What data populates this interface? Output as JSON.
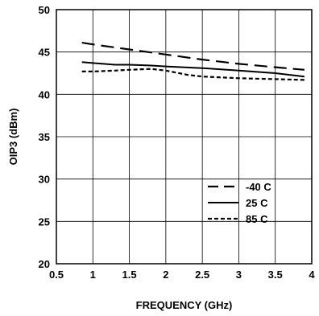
{
  "chart_data": {
    "type": "line",
    "title": "",
    "xlabel": "FREQUENCY (GHz)",
    "ylabel": "OIP3 (dBm)",
    "xlim": [
      0.5,
      4
    ],
    "ylim": [
      20,
      50
    ],
    "x_ticks": [
      "0.5",
      "1",
      "1.5",
      "2",
      "2.5",
      "3",
      "3.5",
      "4"
    ],
    "y_ticks": [
      "20",
      "25",
      "30",
      "35",
      "40",
      "45",
      "50"
    ],
    "grid": true,
    "legend_position": "lower-right",
    "series": [
      {
        "name": "-40 C",
        "style": "dashed",
        "x": [
          0.85,
          1.0,
          1.5,
          2.0,
          2.5,
          3.0,
          3.5,
          3.9
        ],
        "y": [
          46.1,
          45.9,
          45.3,
          44.7,
          44.1,
          43.6,
          43.2,
          42.9
        ]
      },
      {
        "name": "25 C",
        "style": "solid",
        "x": [
          0.85,
          1.0,
          1.3,
          1.5,
          1.8,
          2.0,
          2.5,
          3.0,
          3.5,
          3.9
        ],
        "y": [
          43.8,
          43.7,
          43.5,
          43.5,
          43.4,
          43.3,
          43.1,
          42.8,
          42.5,
          42.1
        ]
      },
      {
        "name": "85 C",
        "style": "dotted",
        "x": [
          0.85,
          1.0,
          1.3,
          1.5,
          1.8,
          2.0,
          2.3,
          2.5,
          3.0,
          3.5,
          3.9
        ],
        "y": [
          42.7,
          42.7,
          42.8,
          42.9,
          43.0,
          42.8,
          42.3,
          42.1,
          41.9,
          41.8,
          41.7
        ]
      }
    ]
  }
}
